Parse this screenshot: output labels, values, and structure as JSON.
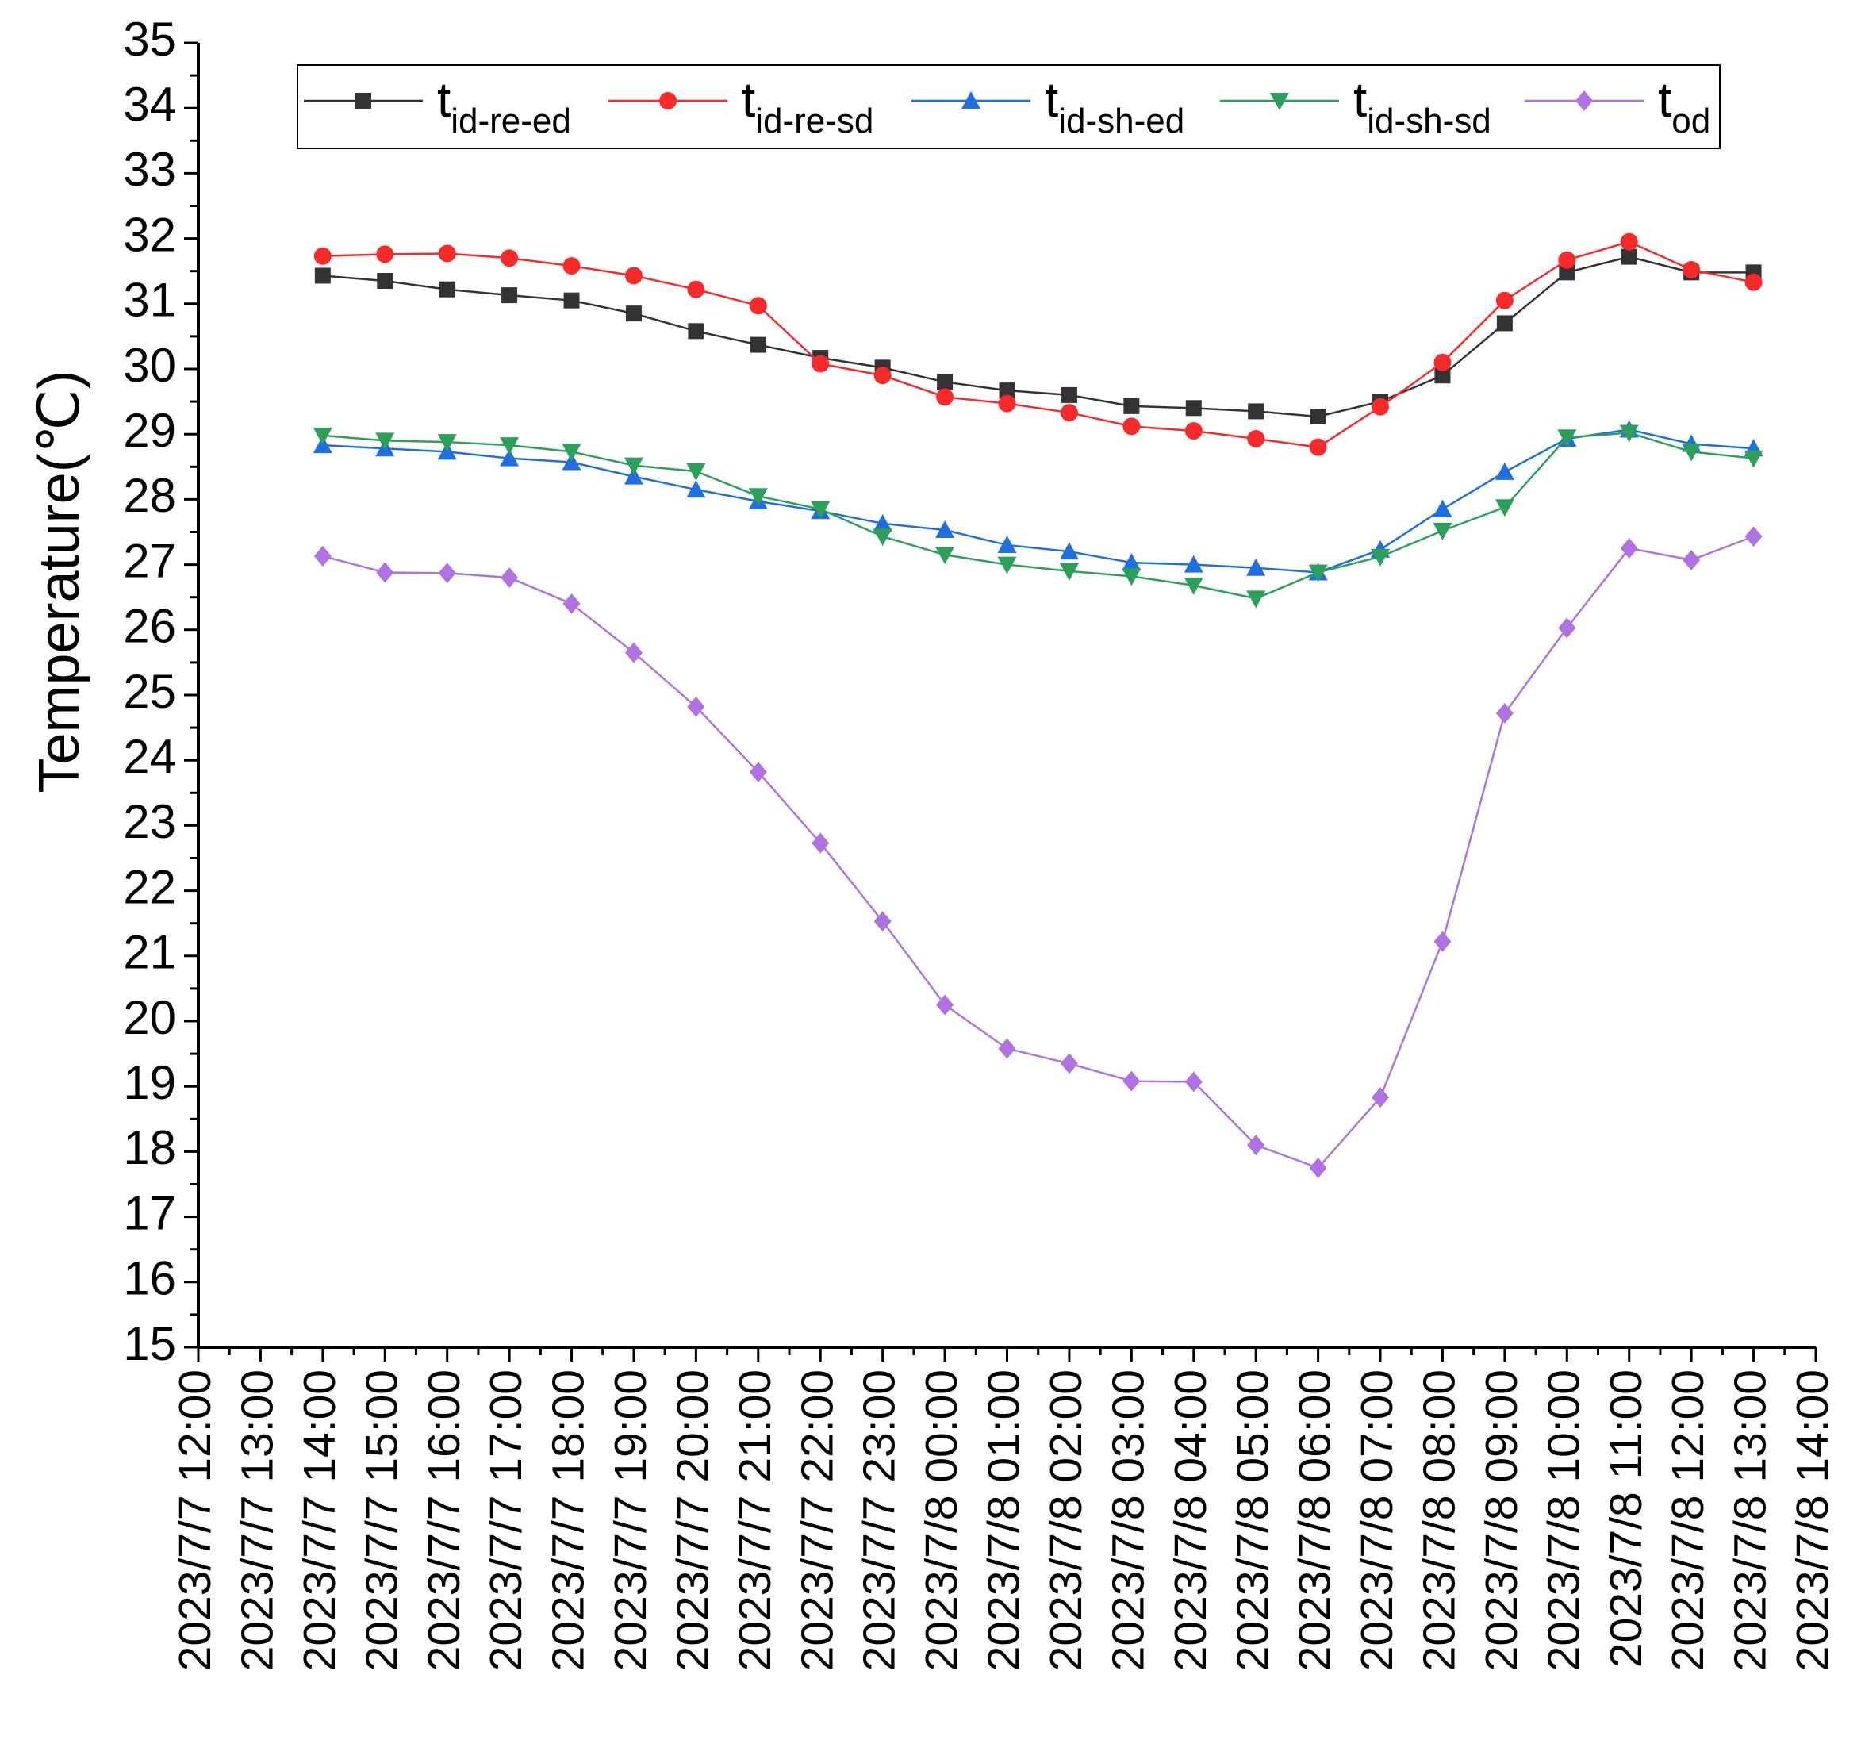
{
  "chart_data": {
    "type": "line",
    "y_label": "Temperature(℃)",
    "categories": [
      "2023/7/7 12:00",
      "2023/7/7 13:00",
      "2023/7/7 14:00",
      "2023/7/7 15:00",
      "2023/7/7 16:00",
      "2023/7/7 17:00",
      "2023/7/7 18:00",
      "2023/7/7 19:00",
      "2023/7/7 20:00",
      "2023/7/7 21:00",
      "2023/7/7 22:00",
      "2023/7/7 23:00",
      "2023/7/8 00:00",
      "2023/7/8 01:00",
      "2023/7/8 02:00",
      "2023/7/8 03:00",
      "2023/7/8 04:00",
      "2023/7/8 05:00",
      "2023/7/8 06:00",
      "2023/7/8 07:00",
      "2023/7/8 08:00",
      "2023/7/8 09:00",
      "2023/7/8 10:00",
      "2023/7/8 11:00",
      "2023/7/8 12:00",
      "2023/7/8 13:00",
      "2023/7/8 14:00"
    ],
    "series": [
      {
        "name": "tid-re-ed",
        "color": "#333333",
        "marker": "square",
        "values": [
          null,
          null,
          31.43,
          31.35,
          31.22,
          31.13,
          31.05,
          30.85,
          30.58,
          30.37,
          30.17,
          30.02,
          29.8,
          29.67,
          29.6,
          29.43,
          29.4,
          29.35,
          29.27,
          29.5,
          29.9,
          30.7,
          31.48,
          31.72,
          31.48,
          31.48,
          null
        ]
      },
      {
        "name": "tid-re-sd",
        "color": "#f52a2a",
        "marker": "circle",
        "values": [
          null,
          null,
          31.73,
          31.76,
          31.77,
          31.7,
          31.58,
          31.43,
          31.22,
          30.97,
          30.08,
          29.9,
          29.57,
          29.47,
          29.33,
          29.12,
          29.05,
          28.93,
          28.8,
          29.42,
          30.1,
          31.05,
          31.67,
          31.95,
          31.52,
          31.33,
          null
        ]
      },
      {
        "name": "tid-sh-ed",
        "color": "#1f6fe0",
        "marker": "triangle-up",
        "values": [
          null,
          null,
          28.83,
          28.78,
          28.73,
          28.63,
          28.57,
          28.35,
          28.15,
          27.97,
          27.82,
          27.63,
          27.53,
          27.3,
          27.2,
          27.03,
          27.0,
          26.95,
          26.88,
          27.23,
          27.85,
          28.42,
          28.93,
          29.07,
          28.85,
          28.78,
          null
        ]
      },
      {
        "name": "tid-sh-sd",
        "color": "#2ca05a",
        "marker": "triangle-down",
        "values": [
          null,
          null,
          28.98,
          28.9,
          28.88,
          28.83,
          28.73,
          28.52,
          28.43,
          28.05,
          27.85,
          27.43,
          27.15,
          27.0,
          26.9,
          26.82,
          26.68,
          26.48,
          26.88,
          27.12,
          27.52,
          27.88,
          28.95,
          29.02,
          28.73,
          28.63,
          null
        ]
      },
      {
        "name": "tod",
        "color": "#b072e0",
        "marker": "diamond",
        "values": [
          null,
          null,
          27.13,
          26.88,
          26.87,
          26.8,
          26.4,
          25.65,
          24.82,
          23.82,
          22.73,
          21.53,
          20.25,
          19.58,
          19.35,
          19.08,
          19.07,
          18.1,
          17.75,
          18.83,
          21.22,
          24.72,
          26.03,
          27.25,
          27.07,
          27.43,
          null
        ]
      }
    ],
    "ylim": [
      15,
      35
    ],
    "yticks": [
      15,
      16,
      17,
      18,
      19,
      20,
      21,
      22,
      23,
      24,
      25,
      26,
      27,
      28,
      29,
      30,
      31,
      32,
      33,
      34,
      35
    ],
    "legend": "top"
  }
}
